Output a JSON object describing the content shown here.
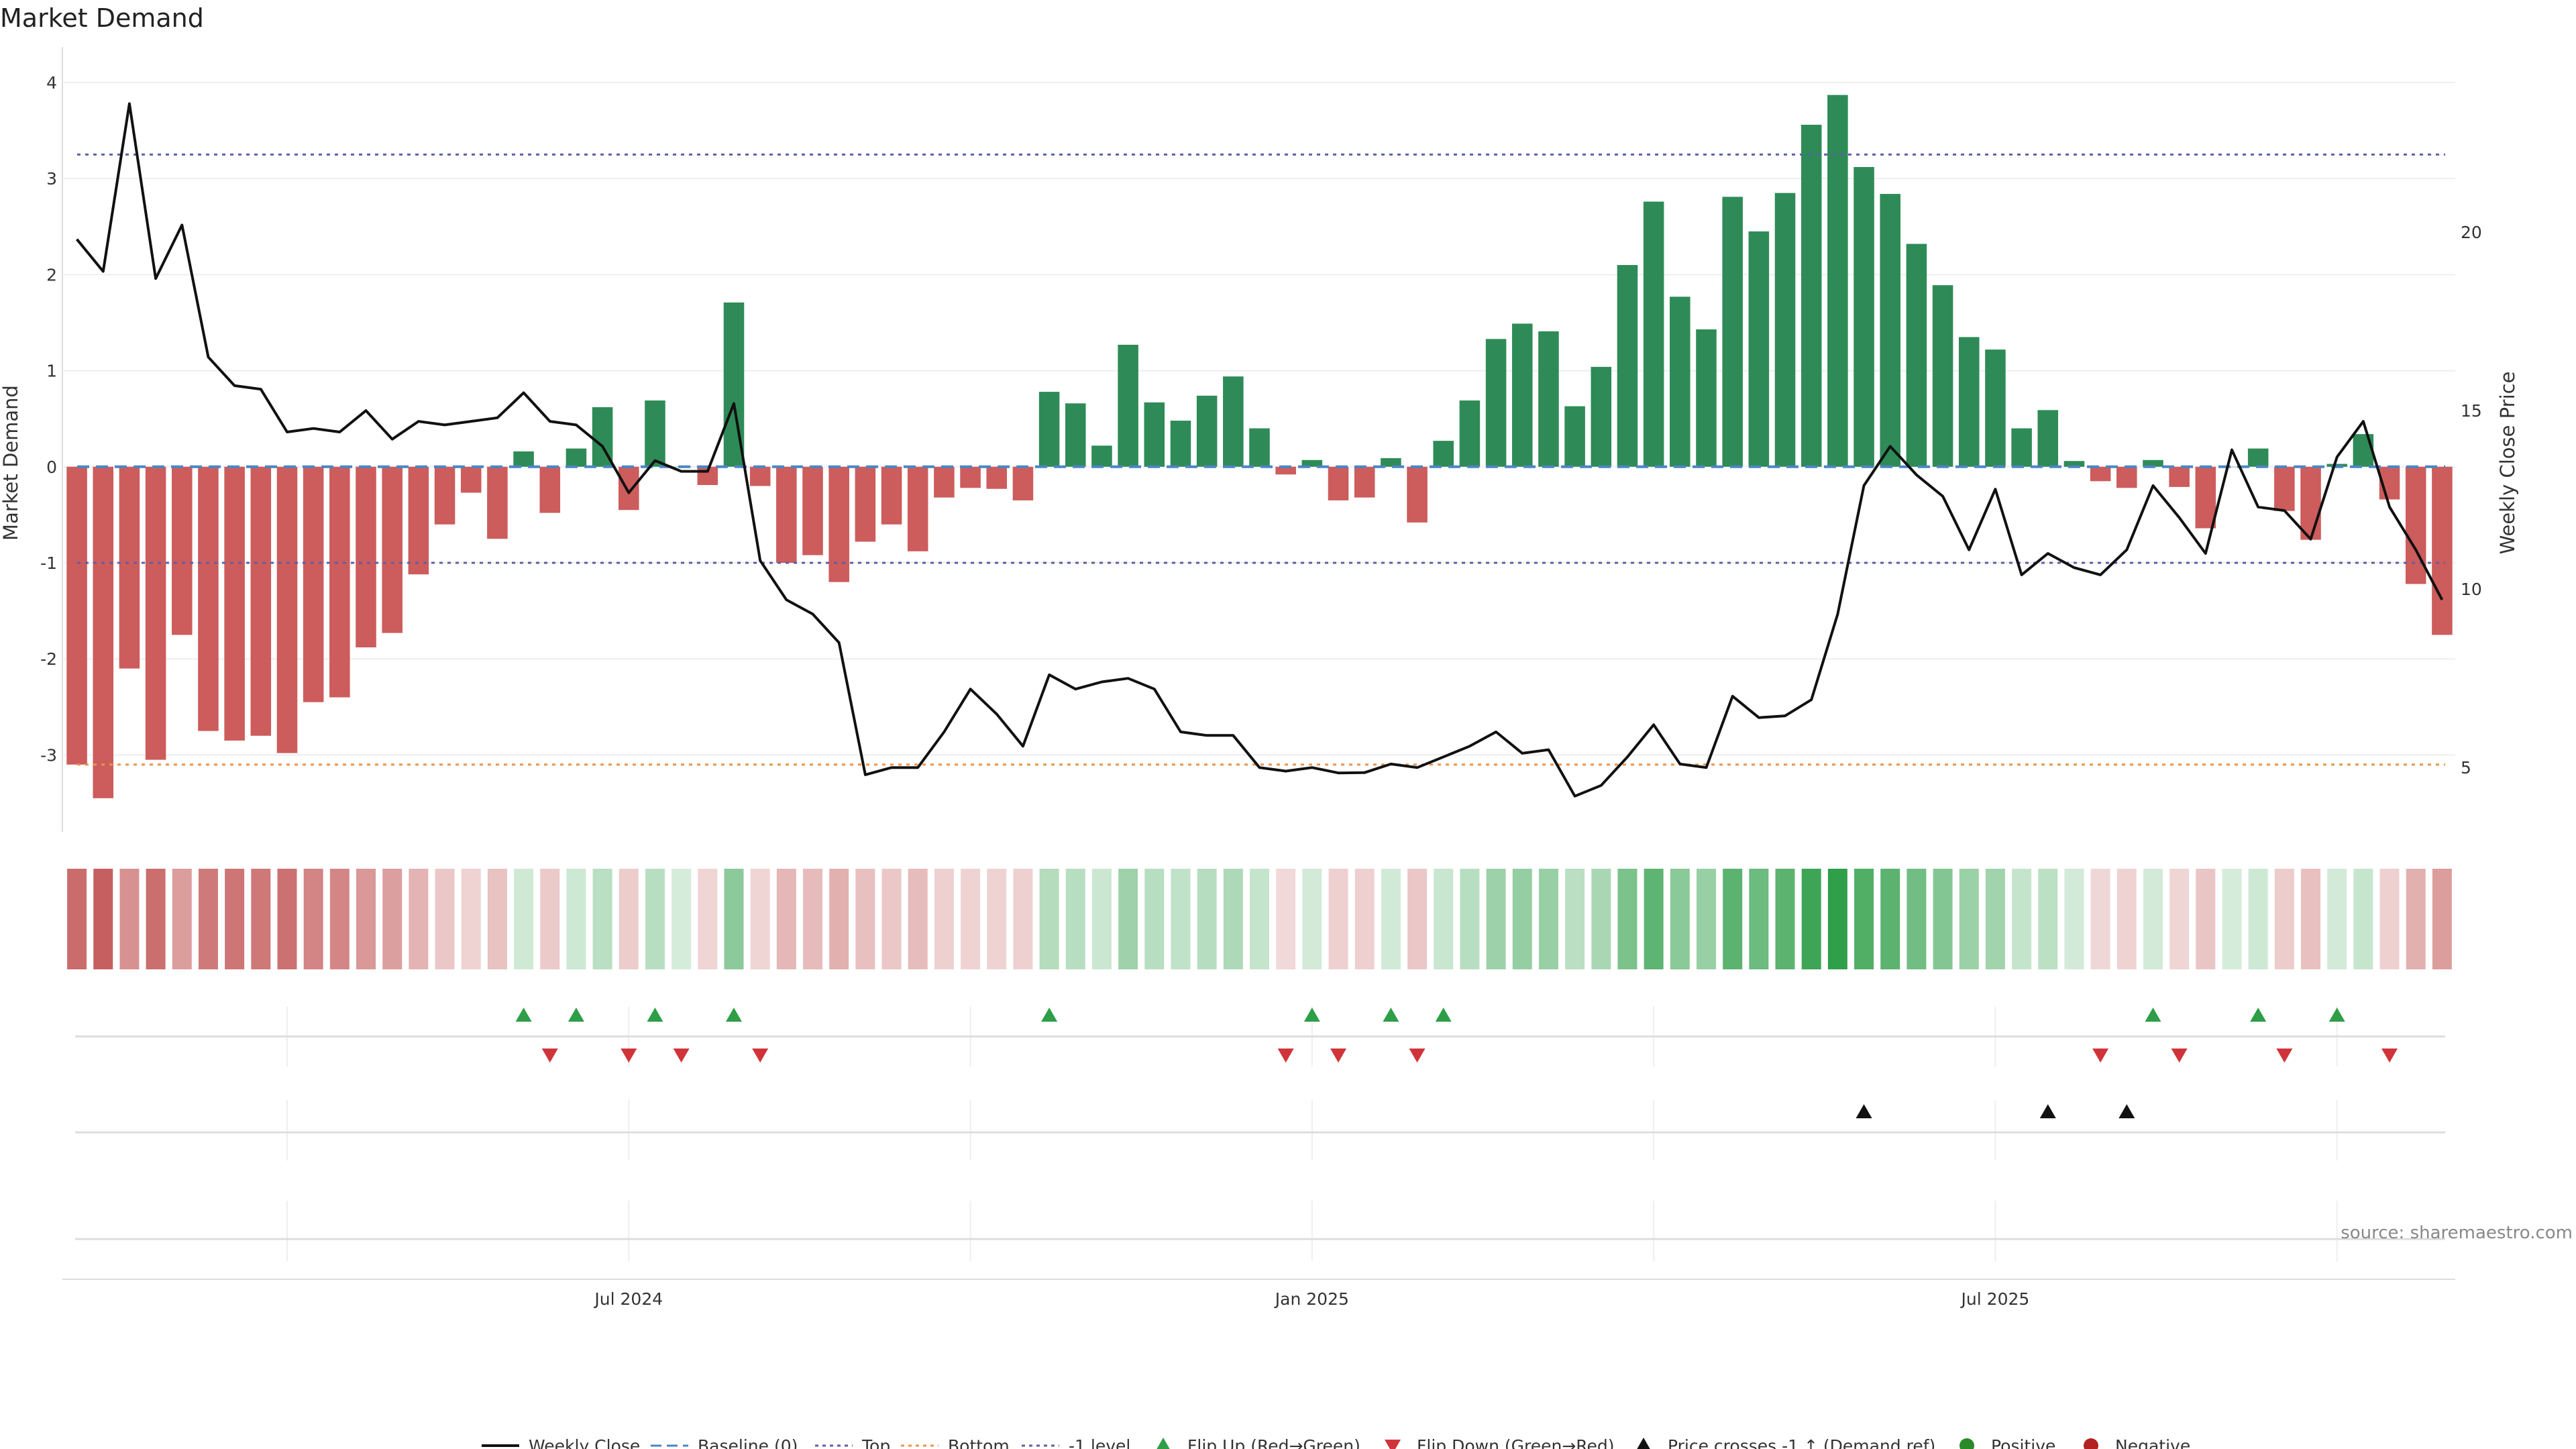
{
  "chart_data": {
    "type": "bar",
    "title": "Market Demand",
    "ylabel": "Market Demand",
    "y2label": "Weekly Close Price",
    "ylim": [
      -3.8,
      4.3
    ],
    "y_ticks": [
      -3,
      -2,
      -1,
      0,
      1,
      2,
      3,
      4
    ],
    "y2lim": [
      3.2,
      25.0
    ],
    "y2_ticks": [
      5,
      10,
      15,
      20
    ],
    "x_ticks": [
      "Jul 2024",
      "Jan 2025",
      "Jul 2025"
    ],
    "x_tick_weeks": [
      21,
      47,
      73
    ],
    "minor_grid_weeks": [
      8,
      34,
      60,
      86
    ],
    "reference_lines": [
      {
        "name": "Baseline (0)",
        "value": 0,
        "color": "#4a86c5",
        "style": "dashed"
      },
      {
        "name": "Top",
        "value": 3.25,
        "color": "#5e5ea8",
        "style": "dotted"
      },
      {
        "name": "Bottom",
        "value": -3.1,
        "color": "#e8944a",
        "style": "dotted"
      },
      {
        "name": "-1 level",
        "value": -1,
        "color": "#5e5ea8",
        "style": "dotted"
      }
    ],
    "series": [
      {
        "name": "Market Demand",
        "kind": "bar",
        "values": [
          -3.1,
          -3.45,
          -2.1,
          -3.05,
          -1.75,
          -2.75,
          -2.85,
          -2.8,
          -2.98,
          -2.45,
          -2.4,
          -1.88,
          -1.73,
          -1.12,
          -0.6,
          -0.27,
          -0.75,
          0.16,
          -0.48,
          0.19,
          0.62,
          -0.45,
          0.69,
          0.0,
          -0.19,
          1.71,
          -0.2,
          -1.0,
          -0.92,
          -1.2,
          -0.78,
          -0.6,
          -0.88,
          -0.32,
          -0.22,
          -0.23,
          -0.35,
          0.78,
          0.66,
          0.22,
          1.27,
          0.67,
          0.48,
          0.74,
          0.94,
          0.4,
          -0.08,
          0.07,
          -0.35,
          -0.32,
          0.09,
          -0.58,
          0.27,
          0.69,
          1.33,
          1.49,
          1.41,
          0.63,
          1.04,
          2.1,
          2.76,
          1.77,
          1.43,
          2.81,
          2.45,
          2.85,
          3.56,
          3.87,
          3.12,
          2.84,
          2.32,
          1.89,
          1.35,
          1.22,
          0.4,
          0.59,
          0.06,
          -0.15,
          -0.22,
          0.07,
          -0.21,
          -0.64,
          0.0,
          0.19,
          -0.46,
          -0.76,
          0.03,
          0.34,
          -0.34,
          -1.22,
          -1.75
        ]
      },
      {
        "name": "Weekly Close",
        "kind": "line",
        "axis": "right",
        "values": [
          19.8,
          18.9,
          23.6,
          18.7,
          20.2,
          16.5,
          15.7,
          15.6,
          14.4,
          14.5,
          14.4,
          15.0,
          14.2,
          14.7,
          14.6,
          14.7,
          14.8,
          15.5,
          14.7,
          14.6,
          14.0,
          12.7,
          13.6,
          13.3,
          13.3,
          15.2,
          10.8,
          9.7,
          9.3,
          8.5,
          4.8,
          5.0,
          5.0,
          6.0,
          7.2,
          6.5,
          5.6,
          7.6,
          7.2,
          7.4,
          7.5,
          7.2,
          6.0,
          5.9,
          5.9,
          5.0,
          4.9,
          5.0,
          4.85,
          4.86,
          5.1,
          5.0,
          5.3,
          5.6,
          6.0,
          5.4,
          5.5,
          4.2,
          4.5,
          5.3,
          6.2,
          5.1,
          5.0,
          7.0,
          6.4,
          6.45,
          6.9,
          9.3,
          12.9,
          14.0,
          13.2,
          12.6,
          11.1,
          12.8,
          10.4,
          11.0,
          10.6,
          10.4,
          11.1,
          12.9,
          12.0,
          11.0,
          13.9,
          12.3,
          12.2,
          11.4,
          13.7,
          14.7,
          12.3,
          11.1,
          9.7
        ]
      }
    ],
    "flip_up_weeks": [
      17,
      19,
      22,
      25,
      37,
      47,
      50,
      52,
      79,
      83,
      86
    ],
    "flip_down_weeks": [
      18,
      21,
      23,
      26,
      46,
      48,
      51,
      77,
      80,
      84,
      88
    ],
    "price_cross_weeks": [
      68,
      75,
      78
    ],
    "legend": [
      {
        "label": "Weekly Close",
        "kind": "line-solid",
        "color": "#111111"
      },
      {
        "label": "Baseline (0)",
        "kind": "line-dashed",
        "color": "#4a86c5"
      },
      {
        "label": "Top",
        "kind": "line-dotted",
        "color": "#5e5ea8"
      },
      {
        "label": "Bottom",
        "kind": "line-dotted",
        "color": "#e8944a"
      },
      {
        "label": "-1 level",
        "kind": "line-dotted",
        "color": "#5e5ea8"
      },
      {
        "label": "Flip Up (Red→Green)",
        "kind": "tri-up",
        "color": "#2e9e48"
      },
      {
        "label": "Flip Down (Green→Red)",
        "kind": "tri-down",
        "color": "#d0343a"
      },
      {
        "label": "Price crosses -1 ↑ (Demand ref)",
        "kind": "tri-up",
        "color": "#111111"
      },
      {
        "label": "Positive",
        "kind": "dot",
        "color": "#2a8a2a"
      },
      {
        "label": "Negative",
        "kind": "dot",
        "color": "#b22222"
      }
    ],
    "source": "source: sharemaestro.com",
    "colors": {
      "positive_bar": "#2e8b57",
      "negative_bar": "#cd5c5c",
      "line": "#111111",
      "heat_pos": "#2e9e48",
      "heat_neg": "#c05050"
    }
  }
}
